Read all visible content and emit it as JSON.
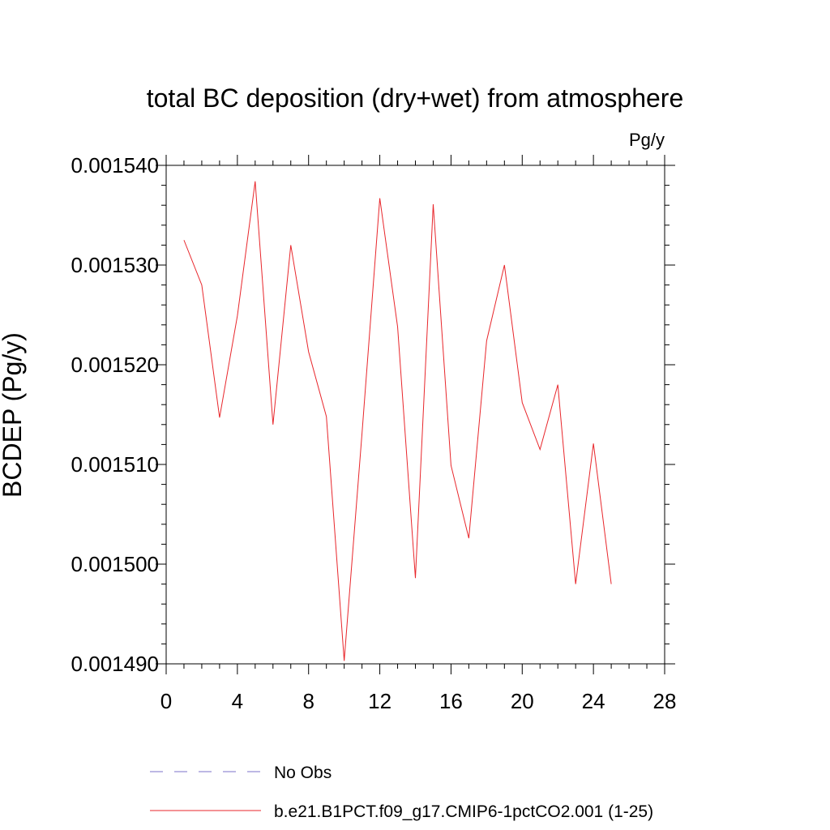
{
  "chart_data": {
    "type": "line",
    "title": "total BC deposition (dry+wet) from atmosphere",
    "units_label": "Pg/y",
    "ylabel": "BCDEP  (Pg/y)",
    "xlabel": "",
    "xlim": [
      0,
      28
    ],
    "ylim": [
      0.00149,
      0.00154
    ],
    "x_ticks": [
      0,
      4,
      8,
      12,
      16,
      20,
      24,
      28
    ],
    "x_tick_labels": [
      "0",
      "4",
      "8",
      "12",
      "16",
      "20",
      "24",
      "28"
    ],
    "y_ticks": [
      0.00149,
      0.0015,
      0.00151,
      0.00152,
      0.00153,
      0.00154
    ],
    "y_tick_labels": [
      "0.001490",
      "0.001500",
      "0.001510",
      "0.001520",
      "0.001530",
      "0.001540"
    ],
    "grid": false,
    "legend_position": "bottom",
    "series": [
      {
        "name": "No Obs",
        "color": "#7b72c8",
        "dash": "dashed",
        "x": [],
        "values": []
      },
      {
        "name": "b.e21.B1PCT.f09_g17.CMIP6-1pctCO2.001 (1-25)",
        "color": "#e8262b",
        "dash": "solid",
        "x": [
          1,
          2,
          3,
          4,
          5,
          6,
          7,
          8,
          9,
          10,
          11,
          12,
          13,
          14,
          15,
          16,
          17,
          18,
          19,
          20,
          21,
          22,
          23,
          24,
          25
        ],
        "values": [
          0.0015325,
          0.001528,
          0.0015147,
          0.0015249,
          0.0015384,
          0.001514,
          0.001532,
          0.0015213,
          0.0015148,
          0.0014903,
          0.0015131,
          0.0015367,
          0.0015238,
          0.0014986,
          0.0015361,
          0.0015099,
          0.0015026,
          0.0015224,
          0.00153,
          0.0015162,
          0.0015115,
          0.001518,
          0.001498,
          0.0015121,
          0.001498
        ]
      }
    ]
  }
}
